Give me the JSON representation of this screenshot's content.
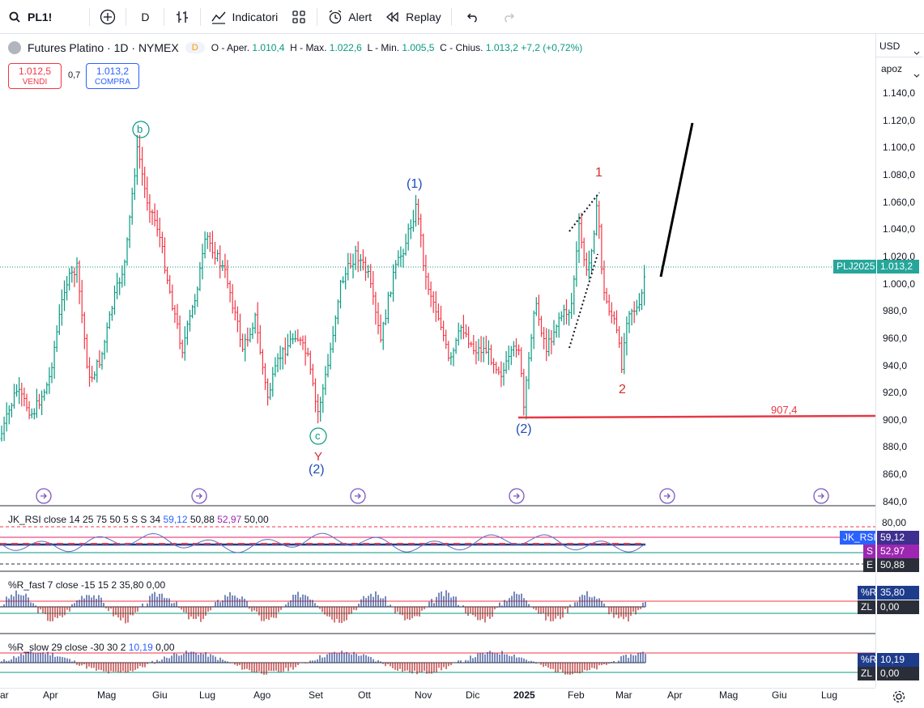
{
  "toolbar": {
    "symbol": "PL1!",
    "interval": "D",
    "indicators_label": "Indicatori",
    "alert_label": "Alert",
    "replay_label": "Replay"
  },
  "header": {
    "title": "Futures Platino · 1D · NYMEX",
    "badge": "D",
    "open_label": "O - Aper.",
    "open": "1.010,4",
    "high_label": "H - Max.",
    "high": "1.022,6",
    "low_label": "L - Min.",
    "low": "1.005,5",
    "close_label": "C - Chius.",
    "close": "1.013,2",
    "change": "+7,2 (+0,72%)"
  },
  "trade": {
    "sell_price": "1.012,5",
    "sell_label": "VENDI",
    "spread": "0,7",
    "buy_price": "1.013,2",
    "buy_label": "COMPRA"
  },
  "axis": {
    "currency": "USD",
    "unit": "apoz",
    "price_ticks": [
      "1.140,0",
      "1.120,0",
      "1.100,0",
      "1.080,0",
      "1.060,0",
      "1.040,0",
      "1.020,0",
      "1.000,0",
      "980,0",
      "960,0",
      "940,0",
      "920,0",
      "900,0",
      "880,0",
      "860,0",
      "840,0"
    ],
    "price_tag_name": "PLJ2025",
    "price_tag_value": "1.013,2",
    "time_ticks": [
      "ar",
      "Apr",
      "Mag",
      "Giu",
      "Lug",
      "Ago",
      "Set",
      "Ott",
      "Nov",
      "Dic",
      "2025",
      "Feb",
      "Mar",
      "Apr",
      "Mag",
      "Giu",
      "Lug"
    ]
  },
  "annotations": {
    "b": "b",
    "c": "c",
    "Y": "Y",
    "w2a": "(2)",
    "w1": "(1)",
    "w2b": "(2)",
    "r1": "1",
    "r2": "2",
    "level": "907,4"
  },
  "rsi": {
    "title_a": "JK_RSI close 14 25 75 50 5 S S 34",
    "v1": "59,12",
    "v2": "50,88",
    "v3": "52,97",
    "v4": "50,00",
    "ticks": [
      "80,00"
    ],
    "tag_name": "JK_RSI",
    "tag_value": "59,12",
    "s_label": "S",
    "s_value": "52,97",
    "e_label": "E",
    "e_value": "50,88"
  },
  "rfast": {
    "title": "%R_fast 7 close -15 15 2",
    "v1": "35,80",
    "v2": "0,00",
    "tag1_label": "%R",
    "tag1_value": "35,80",
    "tag2_label": "ZL",
    "tag2_value": "0,00"
  },
  "rslow": {
    "title": "%R_slow 29 close -30 30 2",
    "v1": "10,19",
    "v2": "0,00",
    "tag1_label": "%R",
    "tag1_value": "10,19",
    "tag2_label": "ZL",
    "tag2_value": "0,00"
  },
  "colors": {
    "up": "#089981",
    "down": "#f23645",
    "wave_blue": "#2962ff",
    "wave_red": "#d32f2f",
    "level": "#e53945"
  }
}
